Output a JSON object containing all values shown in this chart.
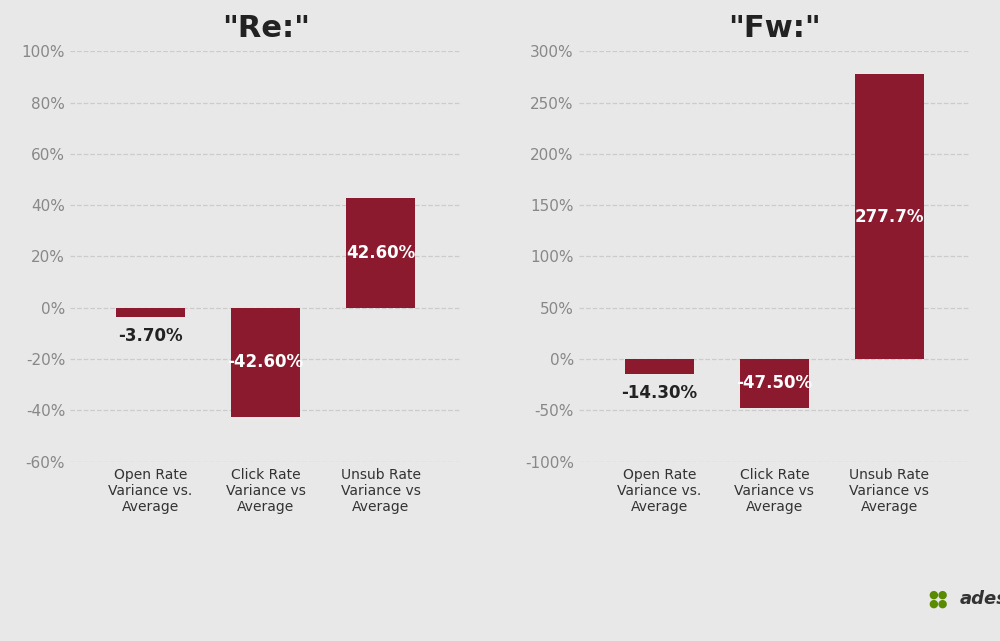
{
  "chart1": {
    "title": "\"Re:\"",
    "categories": [
      "Open Rate\nVariance vs.\nAverage",
      "Click Rate\nVariance vs\nAverage",
      "Unsub Rate\nVariance vs\nAverage"
    ],
    "values": [
      -3.7,
      -42.6,
      42.6
    ],
    "labels": [
      "-3.70%",
      "-42.60%",
      "42.60%"
    ],
    "ylim": [
      -60,
      100
    ],
    "yticks": [
      -60,
      -40,
      -20,
      0,
      20,
      40,
      60,
      80,
      100
    ],
    "ytick_labels": [
      "-60%",
      "-40%",
      "-20%",
      "0%",
      "20%",
      "40%",
      "60%",
      "80%",
      "100%"
    ]
  },
  "chart2": {
    "title": "\"Fw:\"",
    "categories": [
      "Open Rate\nVariance vs.\nAverage",
      "Click Rate\nVariance vs\nAverage",
      "Unsub Rate\nVariance vs\nAverage"
    ],
    "values": [
      -14.3,
      -47.5,
      277.7
    ],
    "labels": [
      "-14.30%",
      "-47.50%",
      "277.7%"
    ],
    "ylim": [
      -100,
      300
    ],
    "yticks": [
      -100,
      -50,
      0,
      50,
      100,
      150,
      200,
      250,
      300
    ],
    "ytick_labels": [
      "-100%",
      "-50%",
      "0%",
      "50%",
      "100%",
      "150%",
      "200%",
      "250%",
      "300%"
    ]
  },
  "bar_color": "#8B1A2E",
  "background_color": "#E8E8E8",
  "title_fontsize": 22,
  "label_fontsize": 12,
  "tick_fontsize": 11,
  "cat_fontsize": 10,
  "bar_width": 0.6,
  "adestra_text": "adestra",
  "adestra_text_color": "#333333",
  "adestra_dot_color": "#5a8a00"
}
